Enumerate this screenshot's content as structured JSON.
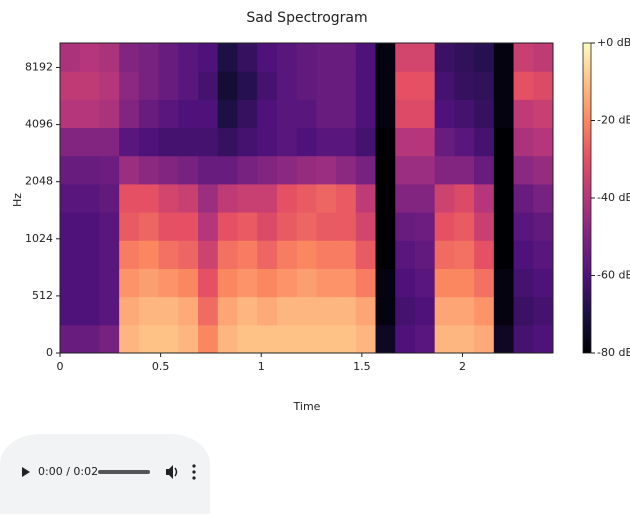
{
  "chart_data": {
    "type": "heatmap",
    "title": "Sad Spectrogram",
    "xlabel": "Time",
    "ylabel": "Hz",
    "xlim": [
      0,
      2.45
    ],
    "xticks": [
      0,
      0.5,
      1,
      1.5,
      2
    ],
    "ylim": [
      0,
      11025
    ],
    "yticks": [
      0,
      512,
      1024,
      2048,
      4096,
      8192
    ],
    "yscale": "symlog",
    "colormap": "magma",
    "clim": [
      -80,
      0
    ],
    "colorbar_ticks": [
      {
        "value": 0,
        "label": "+0 dB"
      },
      {
        "value": -20,
        "label": "-20 dB"
      },
      {
        "value": -40,
        "label": "-40 dB"
      },
      {
        "value": -60,
        "label": "-60 dB"
      },
      {
        "value": -80,
        "label": "-80 dB"
      }
    ],
    "z": [
      [
        -55,
        -55,
        -52,
        -12,
        -10,
        -10,
        -12,
        -20,
        -12,
        -10,
        -10,
        -10,
        -10,
        -10,
        -10,
        -12,
        -75,
        -60,
        -58,
        -12,
        -12,
        -14,
        -75,
        -62,
        -60
      ],
      [
        -60,
        -60,
        -58,
        -14,
        -12,
        -12,
        -14,
        -25,
        -15,
        -12,
        -14,
        -12,
        -12,
        -12,
        -12,
        -15,
        -78,
        -62,
        -60,
        -15,
        -15,
        -18,
        -78,
        -64,
        -62
      ],
      [
        -60,
        -60,
        -58,
        -18,
        -16,
        -18,
        -20,
        -30,
        -20,
        -18,
        -20,
        -18,
        -16,
        -18,
        -18,
        -22,
        -78,
        -60,
        -58,
        -20,
        -20,
        -24,
        -78,
        -62,
        -60
      ],
      [
        -60,
        -60,
        -58,
        -22,
        -20,
        -24,
        -26,
        -35,
        -24,
        -22,
        -26,
        -22,
        -20,
        -22,
        -22,
        -28,
        -80,
        -58,
        -56,
        -25,
        -24,
        -30,
        -80,
        -60,
        -58
      ],
      [
        -60,
        -60,
        -58,
        -28,
        -26,
        -30,
        -30,
        -40,
        -30,
        -28,
        -32,
        -28,
        -26,
        -28,
        -28,
        -34,
        -80,
        -55,
        -54,
        -30,
        -28,
        -36,
        -80,
        -58,
        -56
      ],
      [
        -58,
        -58,
        -56,
        -30,
        -30,
        -34,
        -36,
        -45,
        -38,
        -36,
        -36,
        -30,
        -28,
        -26,
        -28,
        -38,
        -80,
        -50,
        -50,
        -35,
        -32,
        -40,
        -80,
        -55,
        -52
      ],
      [
        -55,
        -55,
        -54,
        -45,
        -48,
        -50,
        -52,
        -55,
        -55,
        -52,
        -50,
        -48,
        -46,
        -45,
        -48,
        -52,
        -80,
        -45,
        -45,
        -50,
        -50,
        -55,
        -80,
        -48,
        -46
      ],
      [
        -50,
        -50,
        -50,
        -58,
        -60,
        -62,
        -62,
        -62,
        -65,
        -62,
        -60,
        -58,
        -60,
        -58,
        -58,
        -62,
        -80,
        -40,
        -40,
        -55,
        -58,
        -62,
        -80,
        -42,
        -40
      ],
      [
        -40,
        -40,
        -42,
        -50,
        -55,
        -58,
        -60,
        -60,
        -70,
        -65,
        -60,
        -58,
        -58,
        -55,
        -55,
        -60,
        -78,
        -32,
        -32,
        -60,
        -62,
        -65,
        -78,
        -38,
        -36
      ],
      [
        -38,
        -38,
        -40,
        -48,
        -52,
        -55,
        -58,
        -62,
        -72,
        -68,
        -62,
        -58,
        -56,
        -55,
        -55,
        -60,
        -78,
        -30,
        -30,
        -62,
        -65,
        -66,
        -78,
        -30,
        -32
      ],
      [
        -42,
        -40,
        -42,
        -50,
        -52,
        -55,
        -58,
        -60,
        -70,
        -65,
        -60,
        -58,
        -56,
        -55,
        -55,
        -60,
        -78,
        -34,
        -34,
        -64,
        -66,
        -68,
        -78,
        -36,
        -38
      ]
    ]
  },
  "player": {
    "time": "0:00 / 0:02"
  }
}
